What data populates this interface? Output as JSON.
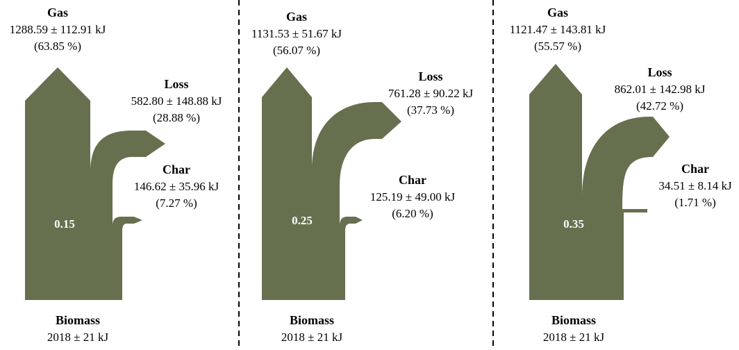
{
  "flow_color": "#66704f",
  "divider_color": "#000000",
  "panels": [
    {
      "ratio": "0.15",
      "input": {
        "title": "Biomass",
        "value": "2018 ± 21 kJ",
        "kj": 2018
      },
      "gas": {
        "title": "Gas",
        "value": "1288.59 ± 112.91 kJ",
        "percent": "(63.85 %)",
        "kj": 1288.59
      },
      "loss": {
        "title": "Loss",
        "value": "582.80 ± 148.88 kJ",
        "percent": "(28.88 %)",
        "kj": 582.8
      },
      "char": {
        "title": "Char",
        "value": "146.62 ± 35.96 kJ",
        "percent": "(7.27 %)",
        "kj": 146.62
      }
    },
    {
      "ratio": "0.25",
      "input": {
        "title": "Biomass",
        "value": "2018 ± 21 kJ",
        "kj": 2018
      },
      "gas": {
        "title": "Gas",
        "value": "1131.53 ± 51.67 kJ",
        "percent": "(56.07 %)",
        "kj": 1131.53
      },
      "loss": {
        "title": "Loss",
        "value": "761.28 ± 90.22 kJ",
        "percent": "(37.73 %)",
        "kj": 761.28
      },
      "char": {
        "title": "Char",
        "value": "125.19 ± 49.00 kJ",
        "percent": "(6.20 %)",
        "kj": 125.19
      }
    },
    {
      "ratio": "0.35",
      "input": {
        "title": "Biomass",
        "value": "2018 ± 21 kJ",
        "kj": 2018
      },
      "gas": {
        "title": "Gas",
        "value": "1121.47 ± 143.81 kJ",
        "percent": "(55.57 %)",
        "kj": 1121.47
      },
      "loss": {
        "title": "Loss",
        "value": "862.01 ± 142.98 kJ",
        "percent": "(42.72 %)",
        "kj": 862.01
      },
      "char": {
        "title": "Char",
        "value": "34.51 ± 8.14 kJ",
        "percent": "(1.71 %)",
        "kj": 34.51
      }
    }
  ]
}
